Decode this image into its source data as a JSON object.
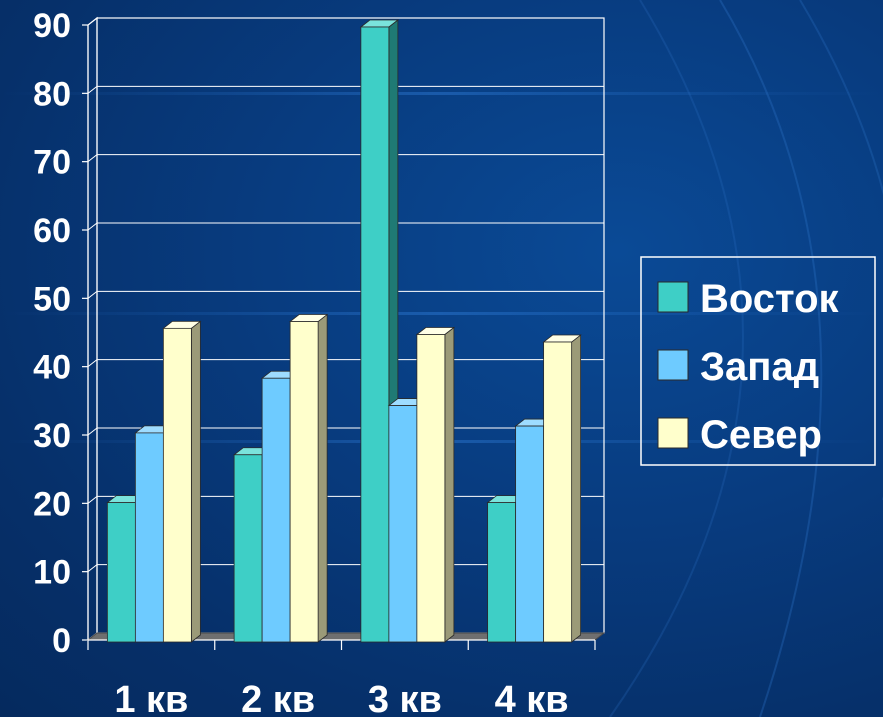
{
  "colors": {
    "background": "#083c80",
    "grid": "#ffffff",
    "series_front": [
      "#3ecfc6",
      "#6ecbff",
      "#ffffcc"
    ],
    "series_side": [
      "#1f7a74",
      "#3c84b4",
      "#9b9a78"
    ],
    "series_top": [
      "#7ae3dc",
      "#9edcff",
      "#ffffe6"
    ]
  },
  "chart_data": {
    "type": "bar",
    "bar_style": "3d-clustered",
    "categories": [
      "1 кв",
      "2 кв",
      "3 кв",
      "4 кв"
    ],
    "series": [
      {
        "name": "Восток",
        "values": [
          20.4,
          27.4,
          90,
          20.4
        ]
      },
      {
        "name": "Запад",
        "values": [
          30.6,
          38.6,
          34.6,
          31.6
        ]
      },
      {
        "name": "Север",
        "values": [
          45.9,
          46.9,
          45,
          43.9
        ]
      }
    ],
    "y_ticks": [
      "0",
      "10",
      "20",
      "30",
      "40",
      "50",
      "60",
      "70",
      "80",
      "90"
    ],
    "ylim": [
      0,
      90
    ],
    "grid": true,
    "legend_position": "right"
  }
}
